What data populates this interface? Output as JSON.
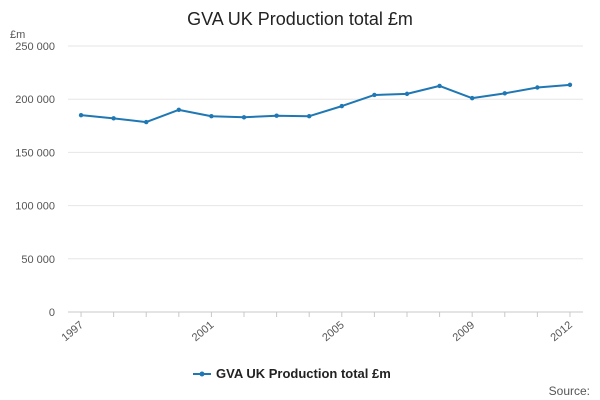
{
  "chart_data": {
    "type": "line",
    "title": "GVA UK Production total £m",
    "unit_label": "£m",
    "x": [
      1997,
      1998,
      1999,
      2000,
      2001,
      2002,
      2003,
      2004,
      2005,
      2006,
      2007,
      2008,
      2009,
      2010,
      2011,
      2012
    ],
    "x_tick_labels": [
      "1997",
      "2001",
      "2005",
      "2009",
      "2012"
    ],
    "x_tick_values": [
      1997,
      2001,
      2005,
      2009,
      2012
    ],
    "series": [
      {
        "name": "GVA UK Production total £m",
        "color": "#1f77b4",
        "values": [
          185000,
          182000,
          178500,
          190000,
          184000,
          183000,
          184500,
          184000,
          193500,
          204000,
          205000,
          212500,
          201000,
          205500,
          211000,
          213500
        ]
      }
    ],
    "ylim": [
      0,
      250000
    ],
    "y_ticks": [
      0,
      50000,
      100000,
      150000,
      200000,
      250000
    ],
    "y_tick_labels": [
      "0",
      "50 000",
      "100 000",
      "150 000",
      "200 000",
      "250 000"
    ],
    "grid": true,
    "legend": "bottom-center",
    "source_label": "Source:"
  }
}
